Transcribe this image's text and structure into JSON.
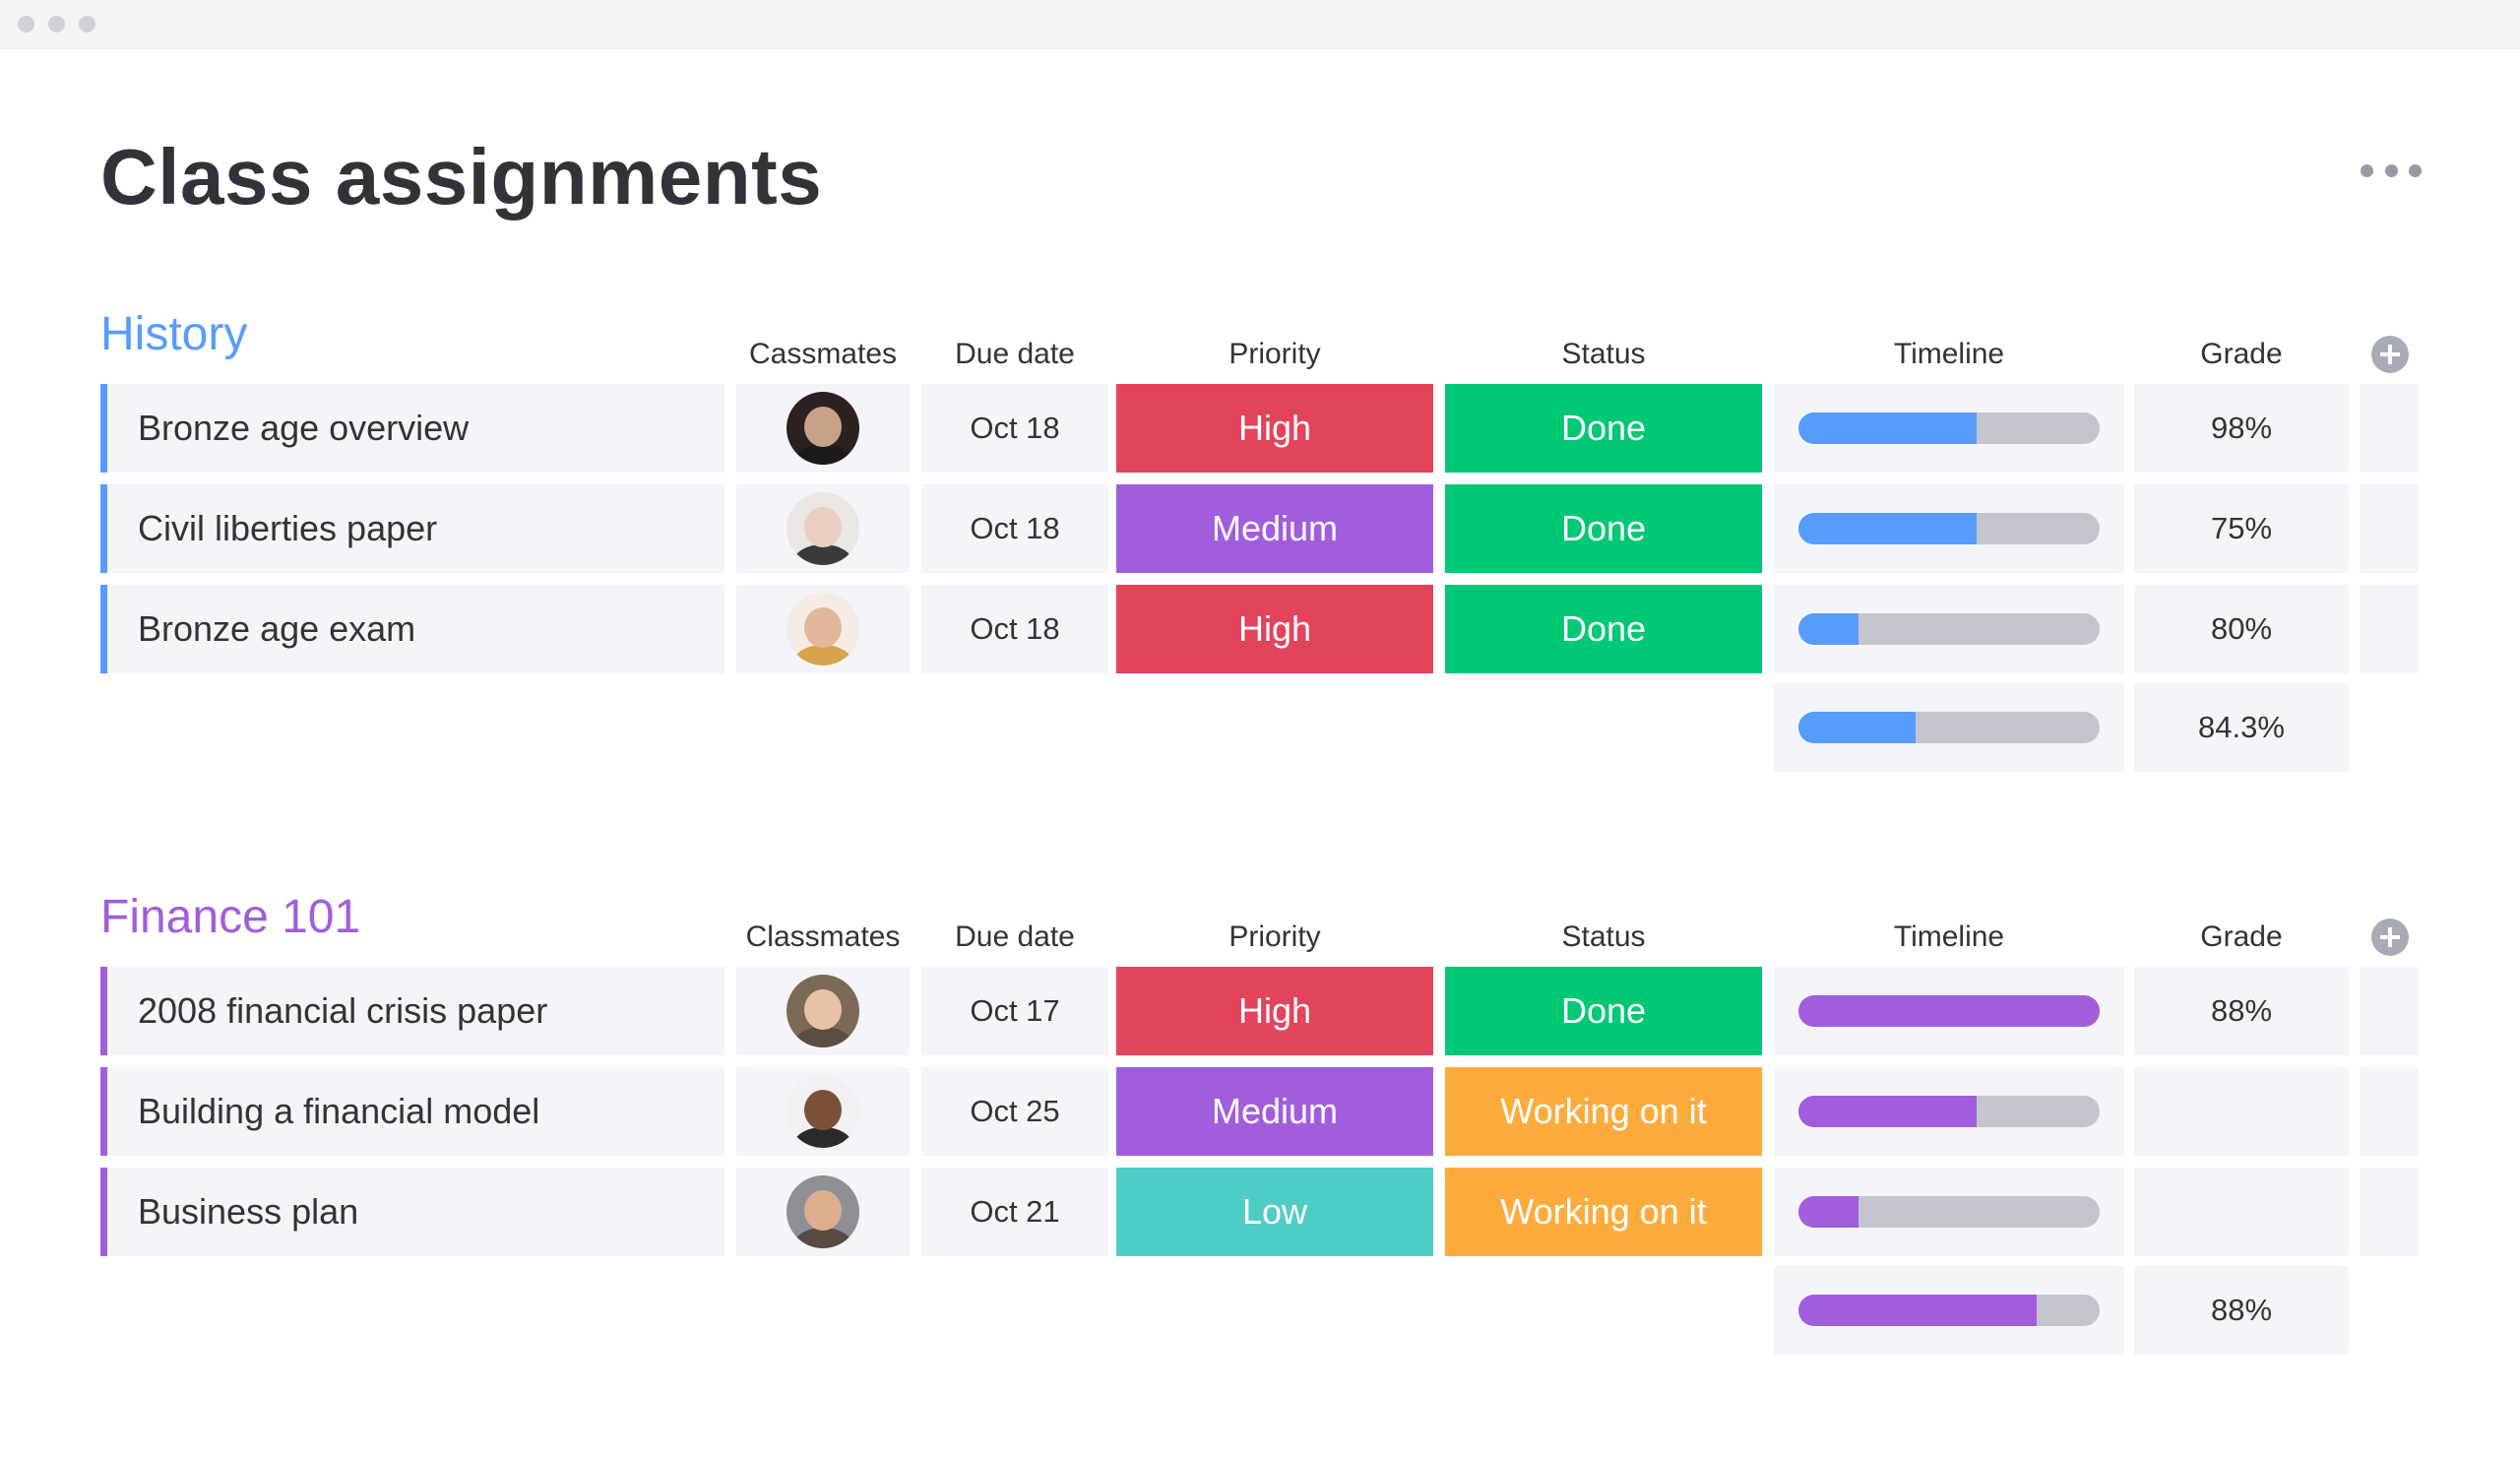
{
  "window": {
    "title": ""
  },
  "page": {
    "title": "Class assignments"
  },
  "colors": {
    "high": "#e2445c",
    "medium": "#a25ddc",
    "low": "#4eccc6",
    "done": "#00c875",
    "working": "#fdab3d",
    "history_accent": "#579bfc",
    "finance_accent": "#a25ddc",
    "track": "#c4c4cc"
  },
  "groups": [
    {
      "title": "History",
      "accent": "#579bfc",
      "columns": {
        "people": "Cassmates",
        "due": "Due date",
        "priority": "Priority",
        "status": "Status",
        "timeline": "Timeline",
        "grade": "Grade"
      },
      "rows": [
        {
          "name": "Bronze age overview",
          "avatar": "avatar-woman-dark-hair",
          "due": "Oct 18",
          "priority": "High",
          "priority_color": "#e2445c",
          "status": "Done",
          "status_color": "#00c875",
          "timeline_progress": 0.59,
          "grade": "98%"
        },
        {
          "name": "Civil liberties paper",
          "avatar": "avatar-woman-short-hair",
          "due": "Oct 18",
          "priority": "Medium",
          "priority_color": "#a25ddc",
          "status": "Done",
          "status_color": "#00c875",
          "timeline_progress": 0.59,
          "grade": "75%"
        },
        {
          "name": "Bronze age exam",
          "avatar": "avatar-woman-blonde",
          "due": "Oct 18",
          "priority": "High",
          "priority_color": "#e2445c",
          "status": "Done",
          "status_color": "#00c875",
          "timeline_progress": 0.2,
          "grade": "80%"
        }
      ],
      "summary": {
        "timeline_progress": 0.39,
        "grade": "84.3%"
      }
    },
    {
      "title": "Finance 101",
      "accent": "#a25ddc",
      "columns": {
        "people": "Classmates",
        "due": "Due date",
        "priority": "Priority",
        "status": "Status",
        "timeline": "Timeline",
        "grade": "Grade"
      },
      "rows": [
        {
          "name": "2008 financial crisis paper",
          "avatar": "avatar-woman-smiling",
          "due": "Oct 17",
          "priority": "High",
          "priority_color": "#e2445c",
          "status": "Done",
          "status_color": "#00c875",
          "timeline_progress": 1.0,
          "grade": "88%"
        },
        {
          "name": "Building a financial model",
          "avatar": "avatar-man-beard",
          "due": "Oct 25",
          "priority": "Medium",
          "priority_color": "#a25ddc",
          "status": "Working on it",
          "status_color": "#fdab3d",
          "timeline_progress": 0.59,
          "grade": ""
        },
        {
          "name": "Business plan",
          "avatar": "avatar-man-bald",
          "due": "Oct 21",
          "priority": "Low",
          "priority_color": "#4eccc6",
          "status": "Working on it",
          "status_color": "#fdab3d",
          "timeline_progress": 0.2,
          "grade": ""
        }
      ],
      "summary": {
        "timeline_progress": 0.79,
        "grade": "88%"
      }
    }
  ]
}
